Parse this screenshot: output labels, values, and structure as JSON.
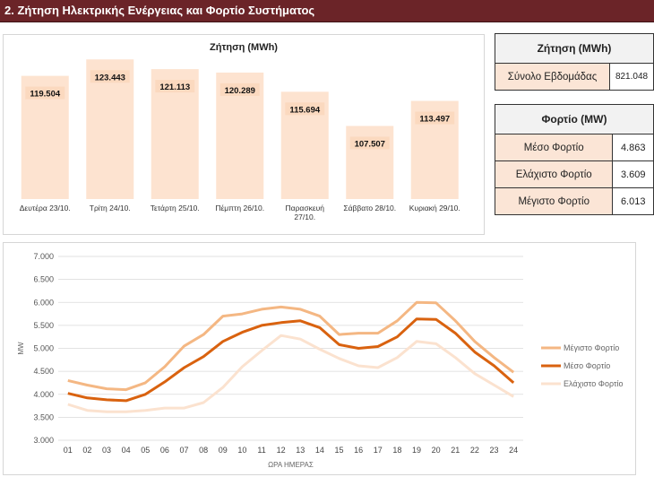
{
  "header": {
    "title": "2. Ζήτηση Ηλεκτρικής Ενέργειας και Φορτίο Συστήματος"
  },
  "demand_table": {
    "title": "Ζήτηση (MWh)",
    "rows": [
      {
        "label": "Σύνολο Εβδομάδας",
        "value": "821.048"
      }
    ]
  },
  "load_table": {
    "title": "Φορτίο (MW)",
    "rows": [
      {
        "label": "Μέσο Φορτίο",
        "value": "4.863"
      },
      {
        "label": "Ελάχιστο Φορτίο",
        "value": "3.609"
      },
      {
        "label": "Μέγιστο Φορτίο",
        "value": "6.013"
      }
    ]
  },
  "colors": {
    "header": "#6b2428",
    "bar": "#fde3d0",
    "label_bg": "#fbe5d6",
    "max": "#f4b783",
    "avg": "#d9620f",
    "min": "#fbe2cf"
  },
  "chart_data": [
    {
      "type": "bar",
      "title": "Ζήτηση (MWh)",
      "categories": [
        "Δευτέρα 23/10.",
        "Τρίτη 24/10.",
        "Τετάρτη 25/10.",
        "Πέμπτη 26/10.",
        "Παρασκευή 27/10.",
        "Σάββατο 28/10.",
        "Κυριακή 29/10."
      ],
      "values": [
        119504,
        123443,
        121113,
        120289,
        115694,
        107507,
        113497
      ],
      "value_labels": [
        "119.504",
        "123.443",
        "121.113",
        "120.289",
        "115.694",
        "107.507",
        "113.497"
      ],
      "ylim": [
        90000,
        125000
      ]
    },
    {
      "type": "line",
      "xlabel": "ΩΡΑ ΗΜΕΡΑΣ",
      "ylabel": "MW",
      "x": [
        "01",
        "02",
        "03",
        "04",
        "05",
        "06",
        "07",
        "08",
        "09",
        "10",
        "11",
        "12",
        "13",
        "14",
        "15",
        "16",
        "17",
        "18",
        "19",
        "20",
        "21",
        "22",
        "23",
        "24"
      ],
      "ylim": [
        3000,
        7000
      ],
      "yticks": [
        "3.000",
        "3.500",
        "4.000",
        "4.500",
        "5.000",
        "5.500",
        "6.000",
        "6.500",
        "7.000"
      ],
      "grid": true,
      "legend": "right",
      "series": [
        {
          "name": "Μέγιστο Φορτίο",
          "values": [
            4300,
            4200,
            4120,
            4100,
            4250,
            4600,
            5050,
            5300,
            5700,
            5750,
            5850,
            5900,
            5850,
            5700,
            5300,
            5330,
            5330,
            5600,
            6000,
            5990,
            5600,
            5150,
            4800,
            4480
          ]
        },
        {
          "name": "Μέσο Φορτίο",
          "values": [
            4020,
            3920,
            3880,
            3860,
            4000,
            4270,
            4580,
            4820,
            5150,
            5350,
            5500,
            5560,
            5600,
            5450,
            5080,
            5000,
            5040,
            5250,
            5640,
            5630,
            5330,
            4920,
            4620,
            4250
          ]
        },
        {
          "name": "Ελάχιστο Φορτίο",
          "values": [
            3780,
            3650,
            3620,
            3620,
            3650,
            3700,
            3700,
            3820,
            4150,
            4600,
            4950,
            5280,
            5200,
            4980,
            4780,
            4620,
            4580,
            4800,
            5150,
            5100,
            4800,
            4450,
            4200,
            3950
          ]
        }
      ]
    }
  ]
}
